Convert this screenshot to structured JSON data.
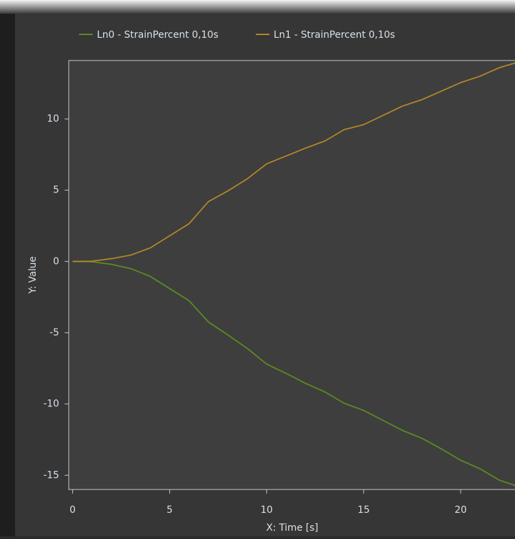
{
  "chart_data": {
    "type": "line",
    "x_label": "X: Time [s]",
    "y_label": "Y: Value",
    "x": [
      0,
      1,
      2,
      3,
      4,
      5,
      6,
      7,
      8,
      9,
      10,
      11,
      12,
      13,
      14,
      15,
      16,
      17,
      18,
      19,
      20,
      21,
      22,
      23
    ],
    "series": [
      {
        "name": "Ln0 - StrainPercent 0,10s",
        "color": "#5b8c1f",
        "values": [
          0,
          -0.02,
          -0.2,
          -0.5,
          -1.05,
          -1.9,
          -2.75,
          -4.25,
          -5.15,
          -6.1,
          -7.2,
          -7.85,
          -8.55,
          -9.15,
          -9.95,
          -10.45,
          -11.15,
          -11.85,
          -12.4,
          -13.15,
          -13.95,
          -14.55,
          -15.35,
          -15.8
        ]
      },
      {
        "name": "Ln1 - StrainPercent 0,10s",
        "color": "#b48628",
        "values": [
          0,
          0.02,
          0.2,
          0.45,
          0.95,
          1.8,
          2.65,
          4.2,
          4.95,
          5.8,
          6.85,
          7.4,
          7.95,
          8.45,
          9.25,
          9.6,
          10.25,
          10.9,
          11.35,
          11.95,
          12.55,
          13.0,
          13.6,
          14.0
        ]
      }
    ],
    "xlim": [
      -0.2,
      22.8
    ],
    "xticks": [
      0,
      5,
      10,
      15,
      20
    ],
    "ylim": [
      -16,
      14.1
    ],
    "yticks": [
      -15,
      -10,
      -5,
      0,
      5,
      10
    ]
  }
}
